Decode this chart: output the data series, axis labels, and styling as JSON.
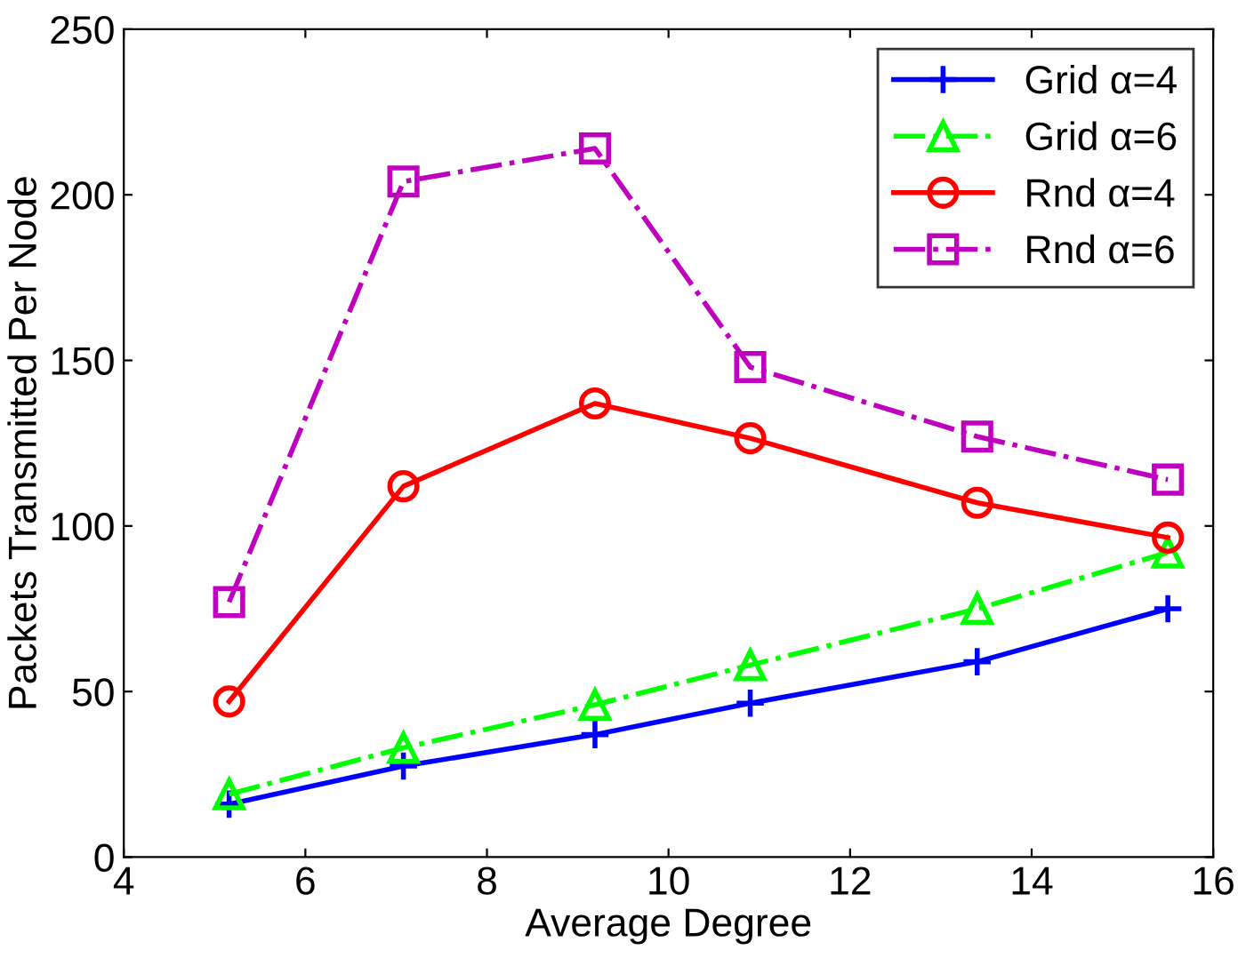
{
  "chart_data": {
    "type": "line",
    "xlabel": "Average Degree",
    "ylabel": "Packets Transmitted Per Node",
    "x": [
      5.16,
      7.08,
      9.19,
      10.9,
      13.4,
      15.5
    ],
    "series": [
      {
        "name": "Grid α=4",
        "color": "#0000ff",
        "marker": "cross",
        "line_style": "solid",
        "values": [
          16,
          27.5,
          37,
          46.5,
          59,
          75
        ]
      },
      {
        "name": "Grid α=6",
        "color": "#00ff00",
        "marker": "triangle",
        "line_style": "dashdot",
        "values": [
          19,
          33,
          46,
          58,
          75,
          92
        ]
      },
      {
        "name": "Rnd α=4",
        "color": "#ff0000",
        "marker": "circle",
        "line_style": "solid",
        "values": [
          47,
          112,
          137,
          126.5,
          107,
          96.5
        ]
      },
      {
        "name": "Rnd α=6",
        "color": "#bf00bf",
        "marker": "square",
        "line_style": "dashdot",
        "values": [
          77,
          204,
          214,
          148,
          127,
          114
        ]
      }
    ],
    "xlim": [
      4,
      16
    ],
    "xticks": [
      4,
      6,
      8,
      10,
      12,
      14,
      16
    ],
    "ylim": [
      0,
      250
    ],
    "yticks": [
      0,
      50,
      100,
      150,
      200,
      250
    ],
    "grid": false,
    "legend": "top right"
  }
}
